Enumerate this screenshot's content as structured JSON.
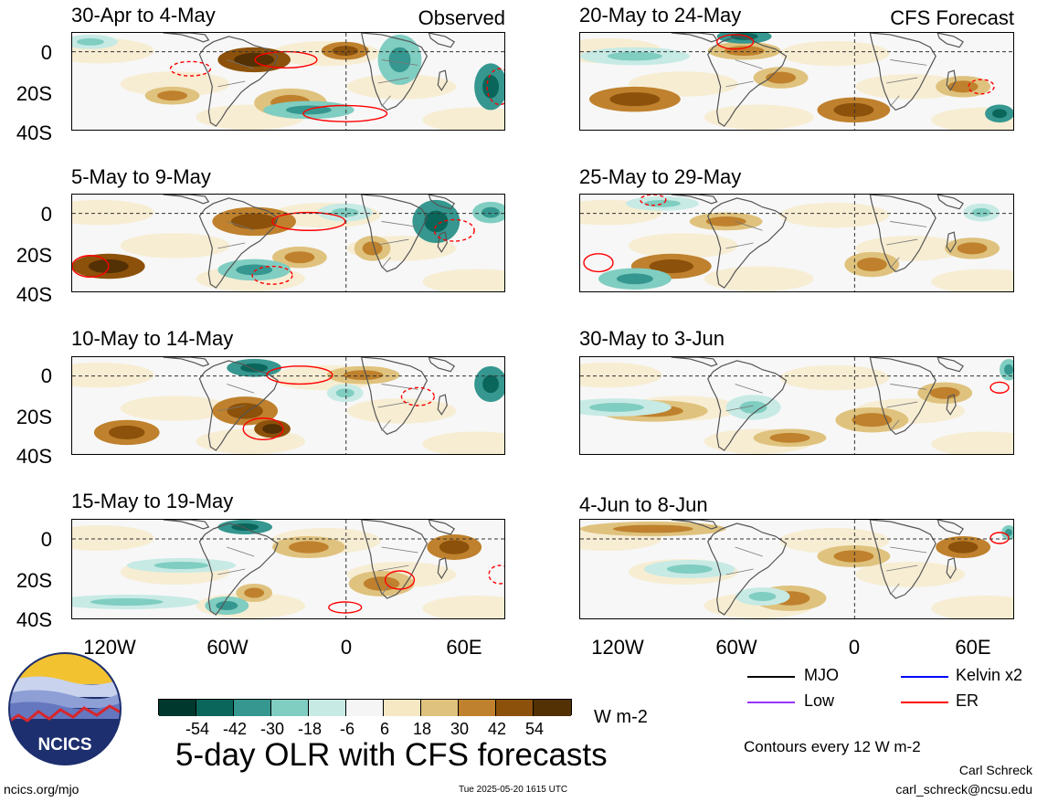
{
  "panels": {
    "observed": [
      {
        "title": "30-Apr to 4-May",
        "tag": "Observed"
      },
      {
        "title": "5-May to 9-May",
        "tag": ""
      },
      {
        "title": "10-May to 14-May",
        "tag": ""
      },
      {
        "title": "15-May to 19-May",
        "tag": ""
      }
    ],
    "forecast": [
      {
        "title": "20-May to 24-May",
        "tag": "CFS Forecast"
      },
      {
        "title": "25-May to 29-May",
        "tag": ""
      },
      {
        "title": "30-May to 3-Jun",
        "tag": ""
      },
      {
        "title": "4-Jun to 8-Jun",
        "tag": ""
      }
    ]
  },
  "axes": {
    "y_labels": [
      "0",
      "20S",
      "40S"
    ],
    "x_labels": [
      "120W",
      "60W",
      "0",
      "60E"
    ]
  },
  "legend": {
    "items": [
      {
        "label": "MJO",
        "color": "#000000",
        "style": "solid"
      },
      {
        "label": "Kelvin x2",
        "color": "#0000ff",
        "style": "solid"
      },
      {
        "label": "Low",
        "color": "#9933ff",
        "style": "solid"
      },
      {
        "label": "ER",
        "color": "#ff0000",
        "style": "solid"
      }
    ],
    "contour_note": "Contours every 12 W m-2"
  },
  "colorbar": {
    "labels": [
      "-54",
      "-42",
      "-30",
      "-18",
      "-6",
      "6",
      "18",
      "30",
      "42",
      "54"
    ],
    "colors": [
      "#00382e",
      "#0a665b",
      "#35978f",
      "#80cdc1",
      "#c7eae5",
      "#f5f5f5",
      "#f6e8c3",
      "#dfc27d",
      "#bf812d",
      "#8c510a",
      "#543005"
    ],
    "units": "W m-2"
  },
  "title": "5-day OLR with CFS forecasts",
  "footer": {
    "left": "ncics.org/mjo",
    "center": "Tue 2025-05-20 1615 UTC",
    "author": "Carl Schreck",
    "email": "carl_schreck@ncsu.edu"
  },
  "logo": {
    "text": "NCICS"
  }
}
